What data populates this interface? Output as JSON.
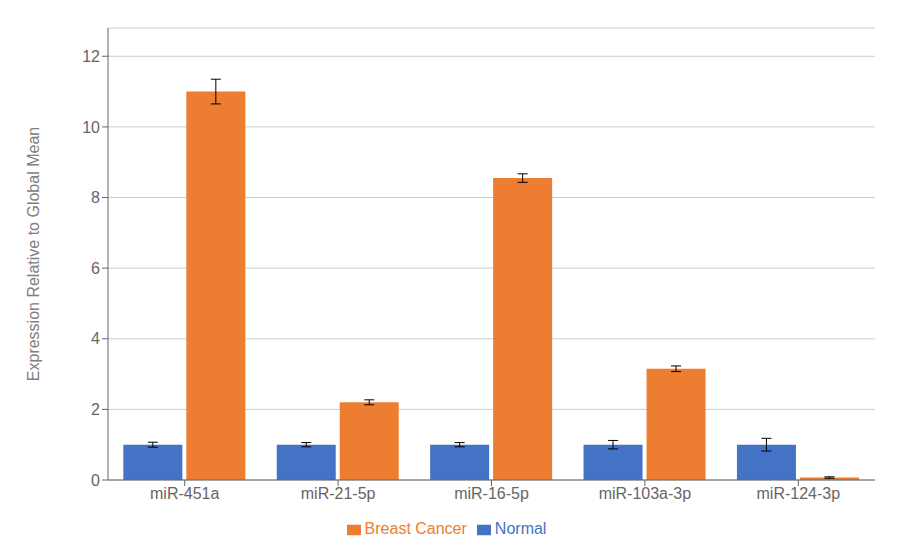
{
  "chart_data": {
    "type": "bar",
    "categories": [
      "miR-451a",
      "miR-21-5p",
      "miR-16-5p",
      "miR-103a-3p",
      "miR-124-3p"
    ],
    "series": [
      {
        "name": "Normal",
        "color": "#4472C4",
        "values": [
          1.0,
          1.0,
          1.0,
          1.0,
          1.0
        ],
        "errors": [
          0.07,
          0.06,
          0.06,
          0.12,
          0.18
        ]
      },
      {
        "name": "Breast Cancer",
        "color": "#ED7D31",
        "values": [
          11.0,
          2.2,
          8.55,
          3.15,
          0.07
        ],
        "errors": [
          0.35,
          0.07,
          0.12,
          0.08,
          0.02
        ]
      }
    ],
    "ylabel": "Expression Relative to Global Mean",
    "ylim": [
      0,
      12.8
    ],
    "yticks": [
      0,
      2,
      4,
      6,
      8,
      10,
      12
    ],
    "grid": true,
    "legend": "bottom"
  }
}
